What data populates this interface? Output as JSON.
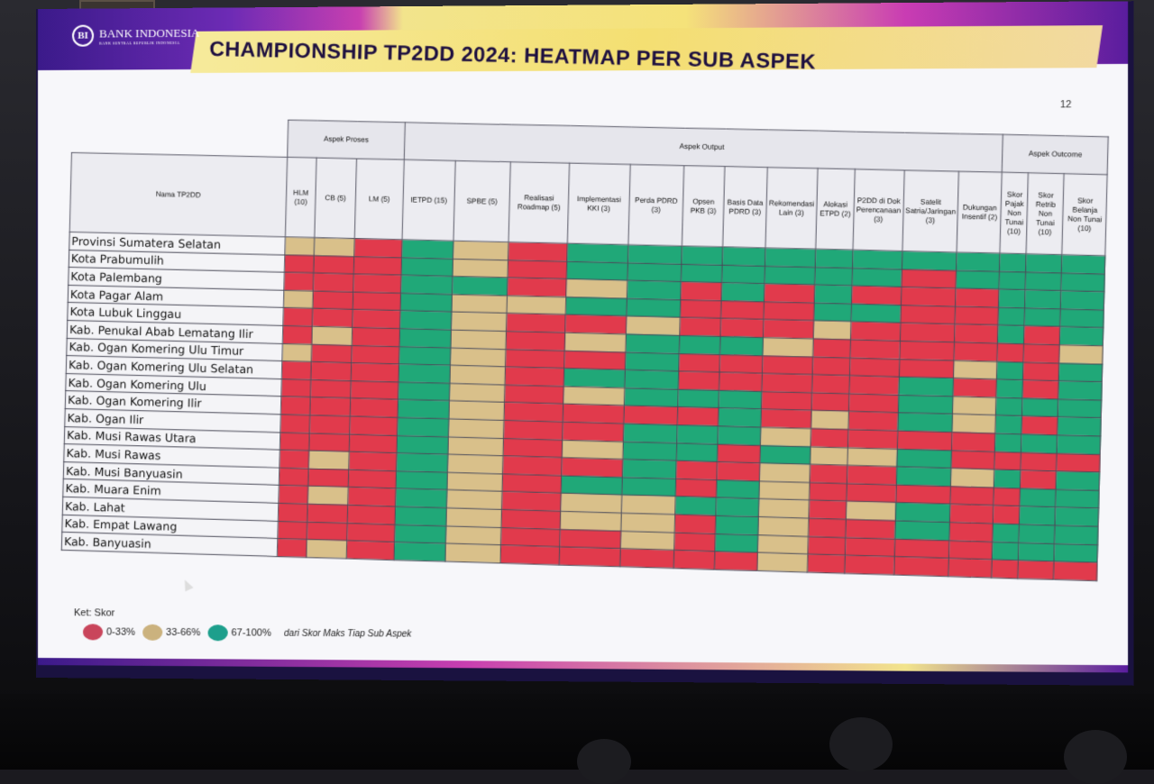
{
  "slide": {
    "logo_text": "BANK INDONESIA",
    "logo_subtext": "BANK SENTRAL REPUBLIK INDONESIA",
    "title": "CHAMPIONSHIP TP2DD 2024: HEATMAP PER SUB ASPEK",
    "page_number": "12"
  },
  "colors": {
    "low": "#e13a4c",
    "mid": "#d9c08a",
    "high": "#20a878",
    "title_text": "#1e1040"
  },
  "chart_data": {
    "type": "heatmap",
    "title": "CHAMPIONSHIP TP2DD 2024: HEATMAP PER SUB ASPEK",
    "row_header": "Nama TP2DD",
    "groups": [
      {
        "label": "Aspek Proses",
        "span": 3
      },
      {
        "label": "Aspek Output",
        "span": 12
      },
      {
        "label": "Aspek Outcome",
        "span": 3
      }
    ],
    "columns": [
      "HLM (10)",
      "CB (5)",
      "LM (5)",
      "IETPD (15)",
      "SPBE (5)",
      "Realisasi Roadmap (5)",
      "Implementasi KKI (3)",
      "Perda PDRD (3)",
      "Opsen PKB (3)",
      "Basis Data PDRD (3)",
      "Rekomendasi Lain (3)",
      "Alokasi ETPD (2)",
      "P2DD di Dok Perencanaan (3)",
      "Satelit Satria/Jaringan (3)",
      "Dukungan Insentif (2)",
      "Skor Pajak Non Tunai (10)",
      "Skor Retrib Non Tunai (10)",
      "Skor Belanja Non Tunai (10)"
    ],
    "rows": [
      "Provinsi Sumatera Selatan",
      "Kota Prabumulih",
      "Kota Palembang",
      "Kota Pagar Alam",
      "Kota Lubuk Linggau",
      "Kab. Penukal Abab Lematang Ilir",
      "Kab. Ogan Komering Ulu Timur",
      "Kab. Ogan Komering Ulu Selatan",
      "Kab. Ogan Komering Ulu",
      "Kab. Ogan Komering Ilir",
      "Kab. Ogan Ilir",
      "Kab. Musi Rawas Utara",
      "Kab. Musi Rawas",
      "Kab. Musi Banyuasin",
      "Kab. Muara Enim",
      "Kab. Lahat",
      "Kab. Empat Lawang",
      "Kab. Banyuasin"
    ],
    "categories": [
      "0-33%",
      "33-66%",
      "67-100%"
    ],
    "values": [
      [
        1,
        1,
        0,
        2,
        1,
        0,
        2,
        2,
        2,
        2,
        2,
        2,
        2,
        2,
        2,
        2,
        2,
        2
      ],
      [
        0,
        0,
        0,
        2,
        1,
        0,
        2,
        2,
        2,
        2,
        2,
        2,
        2,
        0,
        2,
        2,
        2,
        2
      ],
      [
        0,
        0,
        0,
        2,
        2,
        0,
        1,
        2,
        0,
        2,
        0,
        2,
        0,
        0,
        0,
        2,
        2,
        2
      ],
      [
        1,
        0,
        0,
        2,
        1,
        1,
        2,
        2,
        0,
        0,
        0,
        2,
        2,
        0,
        0,
        2,
        2,
        2
      ],
      [
        0,
        0,
        0,
        2,
        1,
        0,
        0,
        1,
        0,
        0,
        0,
        1,
        0,
        0,
        0,
        2,
        0,
        2
      ],
      [
        0,
        1,
        0,
        2,
        1,
        0,
        1,
        2,
        2,
        2,
        1,
        0,
        0,
        0,
        0,
        0,
        0,
        1
      ],
      [
        1,
        0,
        0,
        2,
        1,
        0,
        0,
        2,
        0,
        0,
        0,
        0,
        0,
        0,
        1,
        2,
        0,
        2
      ],
      [
        0,
        0,
        0,
        2,
        1,
        0,
        2,
        2,
        0,
        0,
        0,
        0,
        0,
        2,
        0,
        2,
        0,
        2
      ],
      [
        0,
        0,
        0,
        2,
        1,
        0,
        1,
        2,
        2,
        2,
        0,
        0,
        0,
        2,
        1,
        2,
        2,
        2
      ],
      [
        0,
        0,
        0,
        2,
        1,
        0,
        0,
        0,
        0,
        2,
        0,
        1,
        0,
        2,
        1,
        2,
        0,
        2
      ],
      [
        0,
        0,
        0,
        2,
        1,
        0,
        0,
        2,
        2,
        2,
        1,
        0,
        0,
        0,
        0,
        2,
        2,
        2
      ],
      [
        0,
        0,
        0,
        2,
        1,
        0,
        1,
        2,
        2,
        0,
        2,
        1,
        1,
        2,
        0,
        0,
        0,
        0
      ],
      [
        0,
        1,
        0,
        2,
        1,
        0,
        0,
        2,
        0,
        0,
        1,
        0,
        0,
        2,
        1,
        2,
        0,
        2
      ],
      [
        0,
        0,
        0,
        2,
        1,
        0,
        2,
        2,
        0,
        2,
        1,
        0,
        0,
        0,
        0,
        0,
        2,
        2
      ],
      [
        0,
        1,
        0,
        2,
        1,
        0,
        1,
        1,
        2,
        2,
        1,
        0,
        1,
        2,
        0,
        0,
        2,
        2
      ],
      [
        0,
        0,
        0,
        2,
        1,
        0,
        1,
        1,
        0,
        2,
        1,
        0,
        0,
        2,
        0,
        2,
        2,
        2
      ],
      [
        0,
        0,
        0,
        2,
        1,
        0,
        0,
        1,
        0,
        2,
        1,
        0,
        0,
        0,
        0,
        2,
        2,
        2
      ],
      [
        0,
        1,
        0,
        2,
        1,
        0,
        0,
        0,
        0,
        0,
        1,
        0,
        0,
        0,
        0,
        0,
        0,
        0
      ]
    ]
  },
  "legend": {
    "ket_label": "Ket:  Skor",
    "items": [
      "0-33%",
      "33-66%",
      "67-100%"
    ],
    "note": "dari Skor Maks Tiap Sub Aspek"
  }
}
